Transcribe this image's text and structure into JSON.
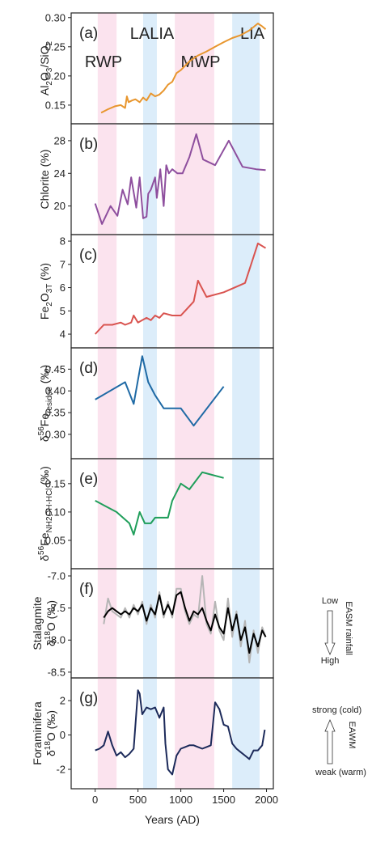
{
  "chart_data": [
    {
      "type": "line",
      "panel_label": "(a)",
      "y_label": [
        [
          {
            "text": "Al"
          },
          {
            "text": "2",
            "shift": "sub"
          },
          {
            "text": "O"
          },
          {
            "text": "3",
            "shift": "sub"
          },
          {
            "text": "/SiO"
          },
          {
            "text": "2",
            "shift": "sub"
          }
        ]
      ],
      "bands": [
        {
          "name": "RWP",
          "range": [
            30,
            250
          ],
          "color": "#fbe3ee"
        },
        {
          "name": "LALIA",
          "range": [
            560,
            720
          ],
          "color": "#dcedfa"
        },
        {
          "name": "MWP",
          "range": [
            930,
            1390
          ],
          "color": "#fbe3ee"
        },
        {
          "name": "LIA",
          "range": [
            1600,
            1920
          ],
          "color": "#dcedfa"
        }
      ],
      "xlim": [
        -280,
        2080
      ],
      "ylim": [
        0.118,
        0.308
      ],
      "yticks": [
        0.15,
        {
          "value": 0.2,
          "label": "0.20"
        },
        0.25,
        {
          "value": 0.3,
          "label": "0.30"
        }
      ],
      "x": [
        70,
        150,
        230,
        300,
        350,
        370,
        390,
        430,
        470,
        520,
        560,
        600,
        650,
        700,
        750,
        800,
        850,
        900,
        950,
        1000,
        1100,
        1200,
        1300,
        1400,
        1500,
        1600,
        1700,
        1800,
        1900,
        1950,
        1990
      ],
      "series": [
        {
          "color": "#e8962e",
          "values": [
            0.137,
            0.143,
            0.148,
            0.15,
            0.145,
            0.165,
            0.155,
            0.158,
            0.16,
            0.155,
            0.163,
            0.158,
            0.17,
            0.165,
            0.168,
            0.175,
            0.185,
            0.19,
            0.205,
            0.21,
            0.225,
            0.235,
            0.242,
            0.25,
            0.258,
            0.265,
            0.27,
            0.278,
            0.29,
            0.285,
            0.28
          ]
        }
      ]
    },
    {
      "type": "line",
      "panel_label": "(b)",
      "y_label": [
        [
          {
            "text": "Chlorite (%)"
          }
        ]
      ],
      "xlim": [
        -280,
        2080
      ],
      "ylim": [
        16.5,
        30.07
      ],
      "yticks": [
        20,
        24,
        28
      ],
      "x": [
        0,
        80,
        180,
        260,
        320,
        380,
        420,
        480,
        520,
        560,
        600,
        620,
        650,
        700,
        720,
        760,
        800,
        830,
        860,
        900,
        960,
        1020,
        1100,
        1180,
        1260,
        1400,
        1560,
        1720,
        1880,
        1990
      ],
      "series": [
        {
          "color": "#8e4f9e",
          "values": [
            20.3,
            17.8,
            20.0,
            18.8,
            22.0,
            20.2,
            23.5,
            19.8,
            23.5,
            18.5,
            18.7,
            21.5,
            22.0,
            23.5,
            21.0,
            24.5,
            20.0,
            25.0,
            24.0,
            24.5,
            24.0,
            24.0,
            26.0,
            28.8,
            25.7,
            25.0,
            28.0,
            24.8,
            24.5,
            24.4
          ]
        }
      ]
    },
    {
      "type": "line",
      "panel_label": "(c)",
      "y_label": [
        [
          {
            "text": "Fe"
          },
          {
            "text": "2",
            "shift": "sub"
          },
          {
            "text": "O"
          },
          {
            "text": "3T",
            "shift": "sub"
          },
          {
            "text": " (%)"
          }
        ]
      ],
      "xlim": [
        -280,
        2080
      ],
      "ylim": [
        3.41,
        8.28
      ],
      "yticks": [
        4,
        5,
        6,
        7,
        8
      ],
      "x": [
        0,
        100,
        200,
        300,
        350,
        420,
        450,
        500,
        550,
        600,
        650,
        700,
        750,
        800,
        900,
        1000,
        1050,
        1150,
        1200,
        1300,
        1500,
        1750,
        1900,
        1990
      ],
      "series": [
        {
          "color": "#d9534f",
          "values": [
            4.0,
            4.4,
            4.4,
            4.5,
            4.4,
            4.5,
            4.8,
            4.5,
            4.6,
            4.7,
            4.6,
            4.8,
            4.7,
            4.9,
            4.8,
            4.8,
            5.0,
            5.4,
            6.3,
            5.6,
            5.8,
            6.2,
            7.9,
            7.7
          ]
        }
      ]
    },
    {
      "type": "line",
      "panel_label": "(d)",
      "y_label": [
        [
          {
            "text": "δ"
          },
          {
            "text": "56",
            "shift": "sup"
          },
          {
            "text": "Fe"
          },
          {
            "text": "residue",
            "shift": "sub"
          },
          {
            "text": " (‰)"
          }
        ]
      ],
      "xlim": [
        -280,
        2080
      ],
      "ylim": [
        0.244,
        0.499
      ],
      "yticks": [
        {
          "value": 0.3,
          "label": "0.30"
        },
        0.35,
        {
          "value": 0.4,
          "label": "0.40"
        },
        0.45
      ],
      "x": [
        0,
        350,
        450,
        550,
        620,
        700,
        800,
        1000,
        1150,
        1500
      ],
      "series": [
        {
          "color": "#1f6aa5",
          "values": [
            0.38,
            0.42,
            0.37,
            0.48,
            0.42,
            0.39,
            0.36,
            0.36,
            0.32,
            0.41
          ]
        }
      ]
    },
    {
      "type": "line",
      "panel_label": "(e)",
      "y_label": [
        [
          {
            "text": "δ"
          },
          {
            "text": "56",
            "shift": "sup"
          },
          {
            "text": "Fe"
          },
          {
            "text": "NH2OH-HCl",
            "shift": "sub"
          },
          {
            "text": " (‰)"
          }
        ]
      ],
      "xlim": [
        -280,
        2080
      ],
      "ylim": [
        0.0,
        0.194
      ],
      "yticks": [
        0.05,
        {
          "value": 0.1,
          "label": "0.10"
        },
        0.15
      ],
      "x": [
        0,
        250,
        400,
        450,
        520,
        580,
        650,
        700,
        750,
        850,
        900,
        1000,
        1100,
        1250,
        1500
      ],
      "series": [
        {
          "color": "#1f9e5a",
          "values": [
            0.12,
            0.1,
            0.08,
            0.06,
            0.1,
            0.08,
            0.08,
            0.09,
            0.09,
            0.09,
            0.12,
            0.15,
            0.14,
            0.17,
            0.16
          ]
        }
      ]
    },
    {
      "type": "line",
      "panel_label": "(f)",
      "y_label": [
        [
          {
            "text": "Stalagmite"
          }
        ],
        [
          {
            "text": "δ"
          },
          {
            "text": "18",
            "shift": "sup"
          },
          {
            "text": "O (‰)"
          }
        ]
      ],
      "side_labels": {
        "top": "Low",
        "bottom": "High",
        "middle": "EASM rainfall",
        "arrow": "down"
      },
      "xlim": [
        -280,
        2080
      ],
      "ylim": [
        -8.59,
        -6.887
      ],
      "yticks": [
        -8.5,
        {
          "value": -8.0,
          "label": "-8.0"
        },
        -7.5,
        {
          "value": -7.0,
          "label": "-7.0"
        }
      ],
      "x": [
        100,
        150,
        200,
        250,
        300,
        350,
        400,
        450,
        500,
        550,
        600,
        650,
        700,
        750,
        800,
        850,
        900,
        950,
        1000,
        1050,
        1100,
        1150,
        1200,
        1250,
        1300,
        1350,
        1400,
        1450,
        1500,
        1550,
        1600,
        1650,
        1700,
        1750,
        1800,
        1850,
        1900,
        1950,
        1990
      ],
      "series": [
        {
          "color": "#b5b5b5",
          "values": [
            -7.75,
            -7.35,
            -7.55,
            -7.6,
            -7.65,
            -7.5,
            -7.65,
            -7.45,
            -7.6,
            -7.4,
            -7.75,
            -7.45,
            -7.65,
            -7.25,
            -7.65,
            -7.4,
            -7.65,
            -7.2,
            -7.2,
            -7.55,
            -7.75,
            -7.6,
            -7.65,
            -7.0,
            -7.75,
            -7.9,
            -7.4,
            -7.85,
            -8.0,
            -7.35,
            -7.95,
            -7.55,
            -8.1,
            -7.7,
            -8.35,
            -7.85,
            -8.2,
            -7.8,
            -7.95
          ]
        },
        {
          "color": "#000000",
          "values": [
            -7.65,
            -7.55,
            -7.5,
            -7.55,
            -7.6,
            -7.55,
            -7.6,
            -7.5,
            -7.55,
            -7.45,
            -7.7,
            -7.5,
            -7.6,
            -7.3,
            -7.6,
            -7.45,
            -7.6,
            -7.3,
            -7.25,
            -7.5,
            -7.7,
            -7.55,
            -7.6,
            -7.5,
            -7.7,
            -7.85,
            -7.6,
            -7.8,
            -7.9,
            -7.5,
            -7.85,
            -7.6,
            -8.0,
            -7.8,
            -8.2,
            -7.9,
            -8.1,
            -7.85,
            -7.95
          ]
        }
      ]
    },
    {
      "type": "line",
      "panel_label": "(g)",
      "y_label": [
        [
          {
            "text": "Foraminifera"
          }
        ],
        [
          {
            "text": "δ"
          },
          {
            "text": "18",
            "shift": "sup"
          },
          {
            "text": "O (‰)"
          }
        ]
      ],
      "side_labels": {
        "top": "strong (cold)",
        "bottom": "weak (warm)",
        "middle": "EAWM",
        "arrow": "up"
      },
      "xlim": [
        -280,
        2080
      ],
      "ylim": [
        -3.13,
        3.32
      ],
      "yticks": [
        -2,
        0,
        2
      ],
      "xticks": [
        0,
        500,
        1000,
        1500,
        2000
      ],
      "x_label": "Years (AD)",
      "x": [
        0,
        50,
        100,
        150,
        200,
        250,
        300,
        350,
        400,
        450,
        500,
        520,
        550,
        600,
        650,
        700,
        750,
        800,
        820,
        850,
        900,
        950,
        1000,
        1050,
        1100,
        1150,
        1200,
        1250,
        1300,
        1350,
        1400,
        1450,
        1500,
        1550,
        1600,
        1650,
        1700,
        1750,
        1800,
        1850,
        1900,
        1950,
        1980
      ],
      "series": [
        {
          "color": "#1c2a5a",
          "values": [
            -0.9,
            -0.8,
            -0.6,
            0.2,
            -0.6,
            -1.2,
            -1.0,
            -1.3,
            -1.1,
            -0.8,
            2.6,
            2.4,
            1.2,
            1.6,
            1.5,
            1.6,
            1.0,
            1.6,
            -0.5,
            -2.0,
            -2.3,
            -1.2,
            -0.8,
            -0.7,
            -0.6,
            -0.6,
            -0.7,
            -0.8,
            -0.7,
            -0.6,
            1.9,
            1.5,
            0.6,
            0.5,
            -0.5,
            -0.8,
            -1.0,
            -1.2,
            -1.4,
            -0.9,
            -0.9,
            -0.6,
            0.3
          ]
        }
      ]
    }
  ]
}
